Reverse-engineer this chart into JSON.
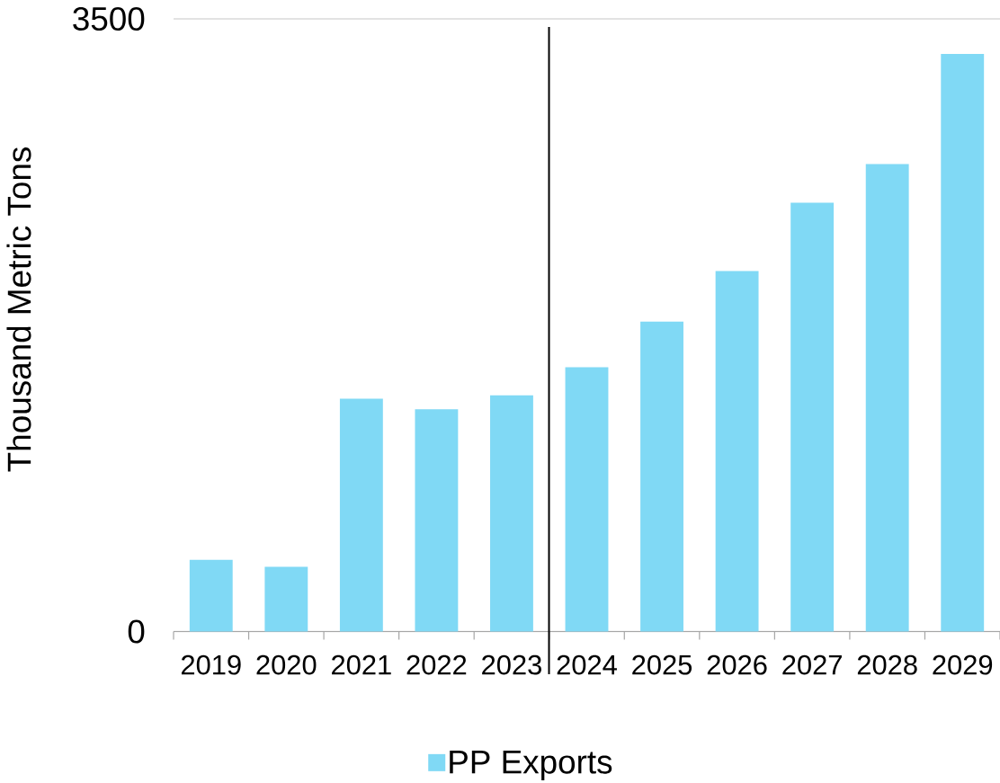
{
  "chart_data": {
    "type": "bar",
    "ylabel": "Thousand Metric Tons",
    "categories": [
      "2019",
      "2020",
      "2021",
      "2022",
      "2023",
      "2024",
      "2025",
      "2026",
      "2027",
      "2028",
      "2029"
    ],
    "series": [
      {
        "name": "PP Exports",
        "color": "#80d9f5",
        "values": [
          410,
          370,
          1330,
          1270,
          1350,
          1510,
          1770,
          2060,
          2450,
          2670,
          3300
        ]
      }
    ],
    "ylim": [
      0,
      3500
    ],
    "yticks": [
      0,
      3500
    ],
    "grid": "y",
    "legend": "bottom"
  }
}
